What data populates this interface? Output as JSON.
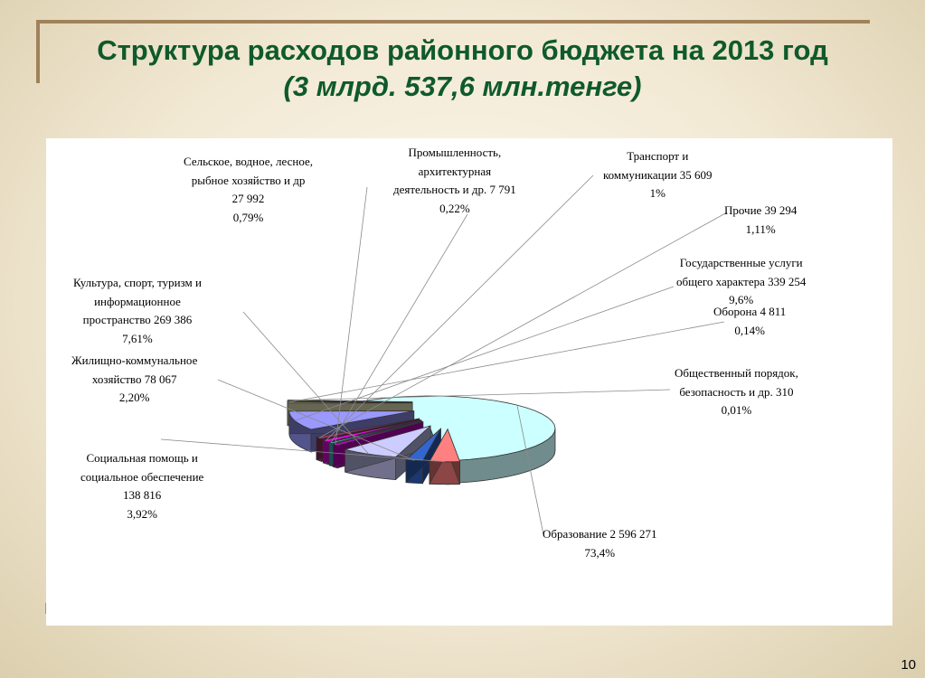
{
  "slide": {
    "title_line1": "Структура расходов районного бюджета на 2013 год",
    "title_line2": "(3 млрд. 537,6 млн.тенге)",
    "page_number": "10"
  },
  "chart_data": {
    "type": "pie",
    "title": "Структура расходов районного бюджета на 2013 год",
    "subtitle": "(3 млрд. 537,6 млн.тенге)",
    "style": "3d-exploded",
    "slices": [
      {
        "label_lines": [
          "Образование 2 596 271",
          "73,4%"
        ],
        "value": 2596271,
        "percent": 73.4,
        "color": "#ccffff"
      },
      {
        "label_lines": [
          "Социальная помощь и",
          "социальное обеспечение",
          "138 816",
          "3,92%"
        ],
        "value": 138816,
        "percent": 3.92,
        "color": "#ff8080"
      },
      {
        "label_lines": [
          "Жилищно-коммунальное",
          "хозяйство 78 067",
          "2,20%"
        ],
        "value": 78067,
        "percent": 2.2,
        "color": "#3366cc"
      },
      {
        "label_lines": [
          "Культура, спорт, туризм и",
          "информационное",
          "пространство 269 386",
          "7,61%"
        ],
        "value": 269386,
        "percent": 7.61,
        "color": "#ccccff"
      },
      {
        "label_lines": [
          "Сельское, водное, лесное,",
          "рыбное хозяйство и др",
          "27 992",
          "0,79%"
        ],
        "value": 27992,
        "percent": 0.79,
        "color": "#cc00cc"
      },
      {
        "label_lines": [
          "Промышленность,",
          "архитектурная",
          "деятельность и др. 7 791",
          "0,22%"
        ],
        "value": 7791,
        "percent": 0.22,
        "color": "#33cccc"
      },
      {
        "label_lines": [
          "Транспорт и",
          "коммуникации 35 609",
          "1%"
        ],
        "value": 35609,
        "percent": 1,
        "color": "#ff00ff"
      },
      {
        "label_lines": [
          "Прочие 39 294",
          "1,11%"
        ],
        "value": 39294,
        "percent": 1.11,
        "color": "#993366"
      },
      {
        "label_lines": [
          "Государственные услуги",
          "общего характера 339 254",
          "9,6%"
        ],
        "value": 339254,
        "percent": 9.6,
        "color": "#9999ff"
      },
      {
        "label_lines": [
          "Оборона 4 811",
          "0,14%"
        ],
        "value": 4811,
        "percent": 0.14,
        "color": "#ffffcc"
      },
      {
        "label_lines": [
          "Общественный порядок,",
          "безопасность  и др. 310",
          "0,01%"
        ],
        "value": 310,
        "percent": 0.01,
        "color": "#808000"
      }
    ]
  }
}
